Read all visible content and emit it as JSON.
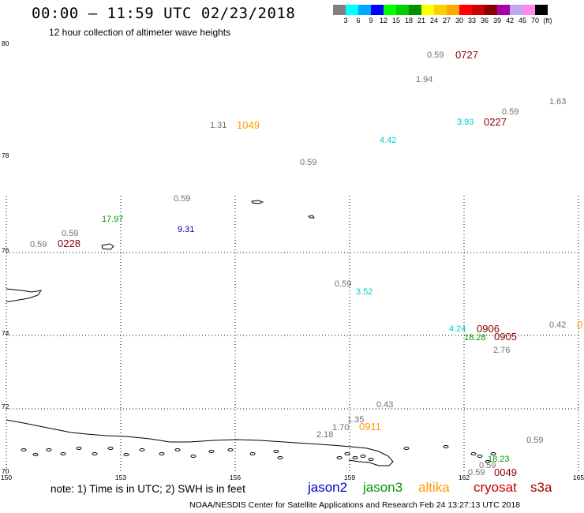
{
  "header": {
    "title": "00:00 – 11:59 UTC 02/23/2018",
    "subtitle": "12 hour collection of altimeter wave heights"
  },
  "colorbar": {
    "colors": [
      "#808080",
      "#00ffff",
      "#00aaff",
      "#0000ff",
      "#00ff00",
      "#00d000",
      "#009000",
      "#ffff00",
      "#ffd000",
      "#ffaa00",
      "#ff0000",
      "#cc0000",
      "#880000",
      "#aa00aa",
      "#bbaaee",
      "#ff88ee",
      "#000000"
    ],
    "labels": [
      "3",
      "6",
      "9",
      "12",
      "15",
      "18",
      "21",
      "24",
      "27",
      "30",
      "33",
      "36",
      "39",
      "42",
      "45",
      "70",
      "(ft)"
    ]
  },
  "axes": {
    "lat_labels": [
      "80",
      "78",
      "76",
      "74",
      "72",
      "70"
    ],
    "lon_labels": [
      "150",
      "153",
      "156",
      "159",
      "162",
      "165"
    ]
  },
  "observations": [
    {
      "text": "0.59",
      "color": "#707070"
    },
    {
      "text": "0727",
      "color": "#880000"
    },
    {
      "text": "1.94",
      "color": "#707070"
    },
    {
      "text": "1.63",
      "color": "#707070"
    },
    {
      "text": "0.59",
      "color": "#707070"
    },
    {
      "text": "3.93",
      "color": "#00cccc"
    },
    {
      "text": "0227",
      "color": "#880000"
    },
    {
      "text": "1.31",
      "color": "#707070"
    },
    {
      "text": "1049",
      "color": "#ff9900"
    },
    {
      "text": "4.42",
      "color": "#00cccc"
    },
    {
      "text": "0.59",
      "color": "#707070"
    },
    {
      "text": "0.59",
      "color": "#707070"
    },
    {
      "text": "17.97",
      "color": "#009900"
    },
    {
      "text": "9.31",
      "color": "#0000aa"
    },
    {
      "text": "0.59",
      "color": "#707070"
    },
    {
      "text": "0.59",
      "color": "#707070"
    },
    {
      "text": "0228",
      "color": "#880000"
    },
    {
      "text": "0.59",
      "color": "#707070"
    },
    {
      "text": "3.52",
      "color": "#00cccc"
    },
    {
      "text": "4.24",
      "color": "#00cccc"
    },
    {
      "text": "0906",
      "color": "#880000"
    },
    {
      "text": "18.28",
      "color": "#009900"
    },
    {
      "text": "0905",
      "color": "#880000"
    },
    {
      "text": "0.42",
      "color": "#707070"
    },
    {
      "text": "0",
      "color": "#ff9900"
    },
    {
      "text": "2.76",
      "color": "#707070"
    },
    {
      "text": "0.43",
      "color": "#707070"
    },
    {
      "text": "1.35",
      "color": "#707070"
    },
    {
      "text": "1.70",
      "color": "#707070"
    },
    {
      "text": "0911",
      "color": "#ff9900"
    },
    {
      "text": "2.18",
      "color": "#707070"
    },
    {
      "text": "0.59",
      "color": "#707070"
    },
    {
      "text": "18.23",
      "color": "#009900"
    },
    {
      "text": "0.59",
      "color": "#707070"
    },
    {
      "text": "0.59",
      "color": "#707070"
    },
    {
      "text": "0049",
      "color": "#880000"
    }
  ],
  "legend": {
    "note": "note: 1) Time is in UTC; 2) SWH is in feet",
    "satellites": [
      {
        "name": "jason2",
        "color": "#0000cc"
      },
      {
        "name": "jason3",
        "color": "#009900"
      },
      {
        "name": "altika",
        "color": "#ff9900"
      },
      {
        "name": "cryosat",
        "color": "#cc0000"
      },
      {
        "name": "s3a",
        "color": "#990000"
      }
    ]
  },
  "footer": "NOAA/NESDIS Center for Satellite Applications and Research    Feb 24 13:27:13 UTC 2018"
}
